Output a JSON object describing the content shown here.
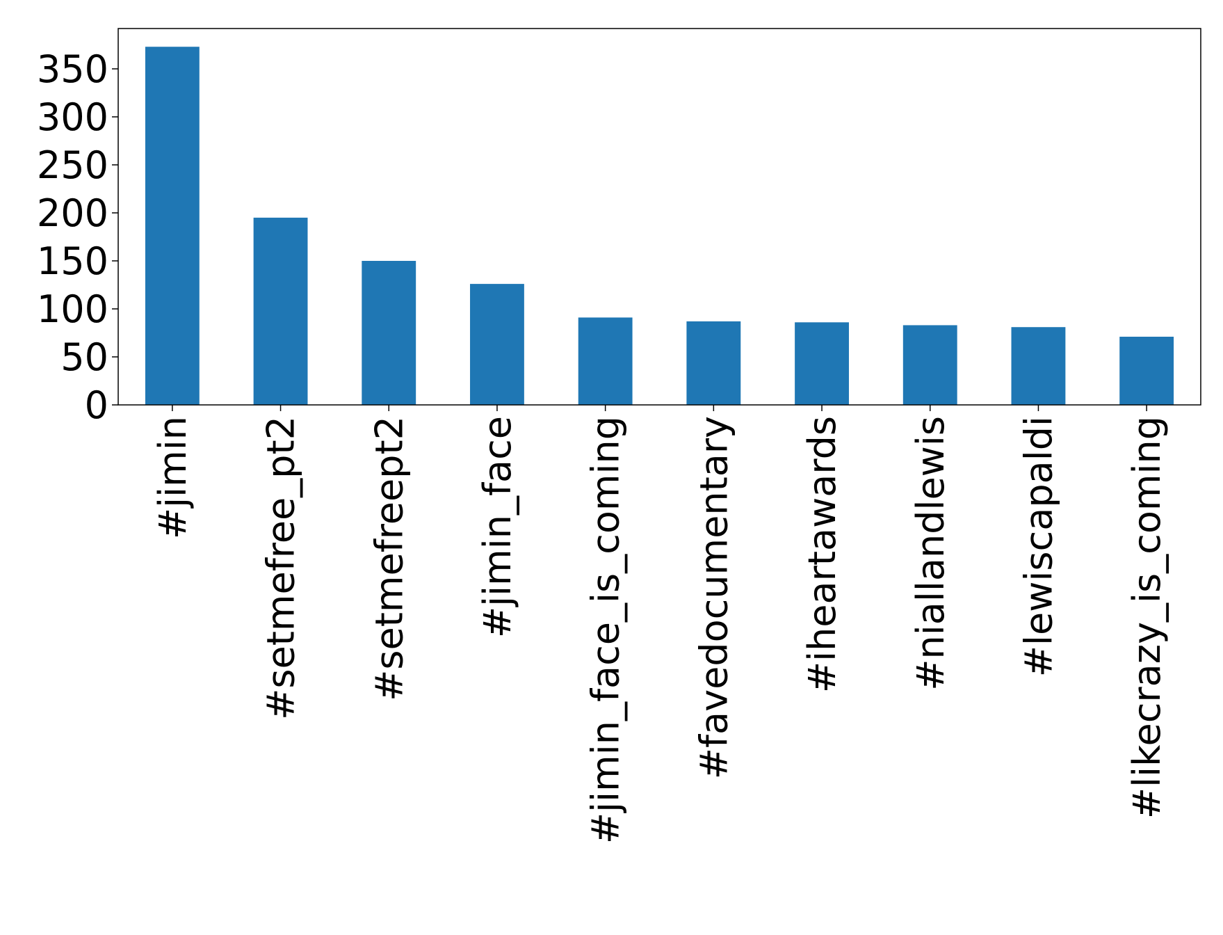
{
  "chart_data": {
    "type": "bar",
    "categories": [
      "#jimin",
      "#setmefree_pt2",
      "#setmefreept2",
      "#jimin_face",
      "#jimin_face_is_coming",
      "#favedocumentary",
      "#iheartawards",
      "#niallandlewis",
      "#lewiscapaldi",
      "#likecrazy_is_coming"
    ],
    "values": [
      373,
      195,
      150,
      126,
      91,
      87,
      86,
      83,
      81,
      71
    ],
    "color": "#1f77b4",
    "ylim": [
      0,
      392
    ],
    "yticks": [
      0,
      50,
      100,
      150,
      200,
      250,
      300,
      350
    ],
    "grid": false
  }
}
